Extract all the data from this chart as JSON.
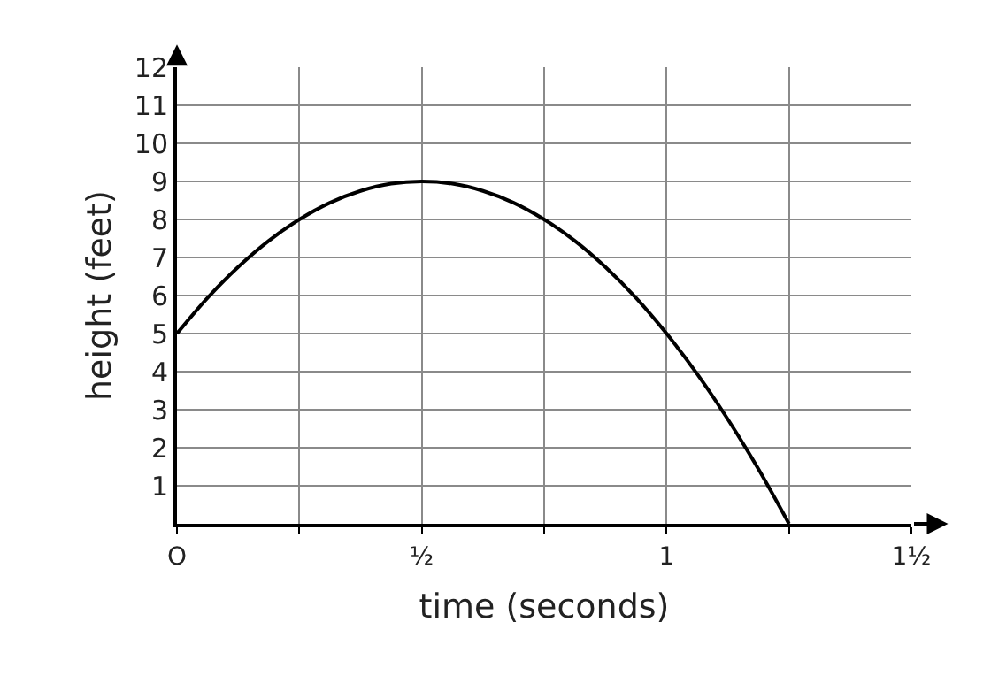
{
  "chart_data": {
    "type": "line",
    "xlabel": "time (seconds)",
    "ylabel": "height (feet)",
    "x": [
      0,
      0.0625,
      0.125,
      0.1875,
      0.25,
      0.3125,
      0.375,
      0.4375,
      0.5,
      0.5625,
      0.625,
      0.6875,
      0.75,
      0.8125,
      0.875,
      0.9375,
      1,
      1.0625,
      1.125,
      1.1875,
      1.25
    ],
    "series": [
      {
        "color": "#000000",
        "values": [
          5,
          5.94,
          6.75,
          7.44,
          8,
          8.44,
          8.75,
          8.94,
          9,
          8.94,
          8.75,
          8.44,
          8,
          7.44,
          6.75,
          5.94,
          5,
          3.94,
          2.75,
          1.44,
          0
        ]
      }
    ],
    "xlim": [
      0,
      1.5
    ],
    "ylim": [
      0,
      12
    ],
    "xticks": [
      {
        "value": 0,
        "label": "O"
      },
      {
        "value": 0.25,
        "label": null
      },
      {
        "value": 0.5,
        "label": "½"
      },
      {
        "value": 0.75,
        "label": null
      },
      1,
      {
        "value": 1.25,
        "label": null
      },
      {
        "value": 1.5,
        "label": "1½"
      }
    ],
    "yticks": [
      1,
      2,
      3,
      4,
      5,
      6,
      7,
      8,
      9,
      10,
      11,
      12
    ],
    "grid": true,
    "marker": "none",
    "line_style": "solid"
  }
}
